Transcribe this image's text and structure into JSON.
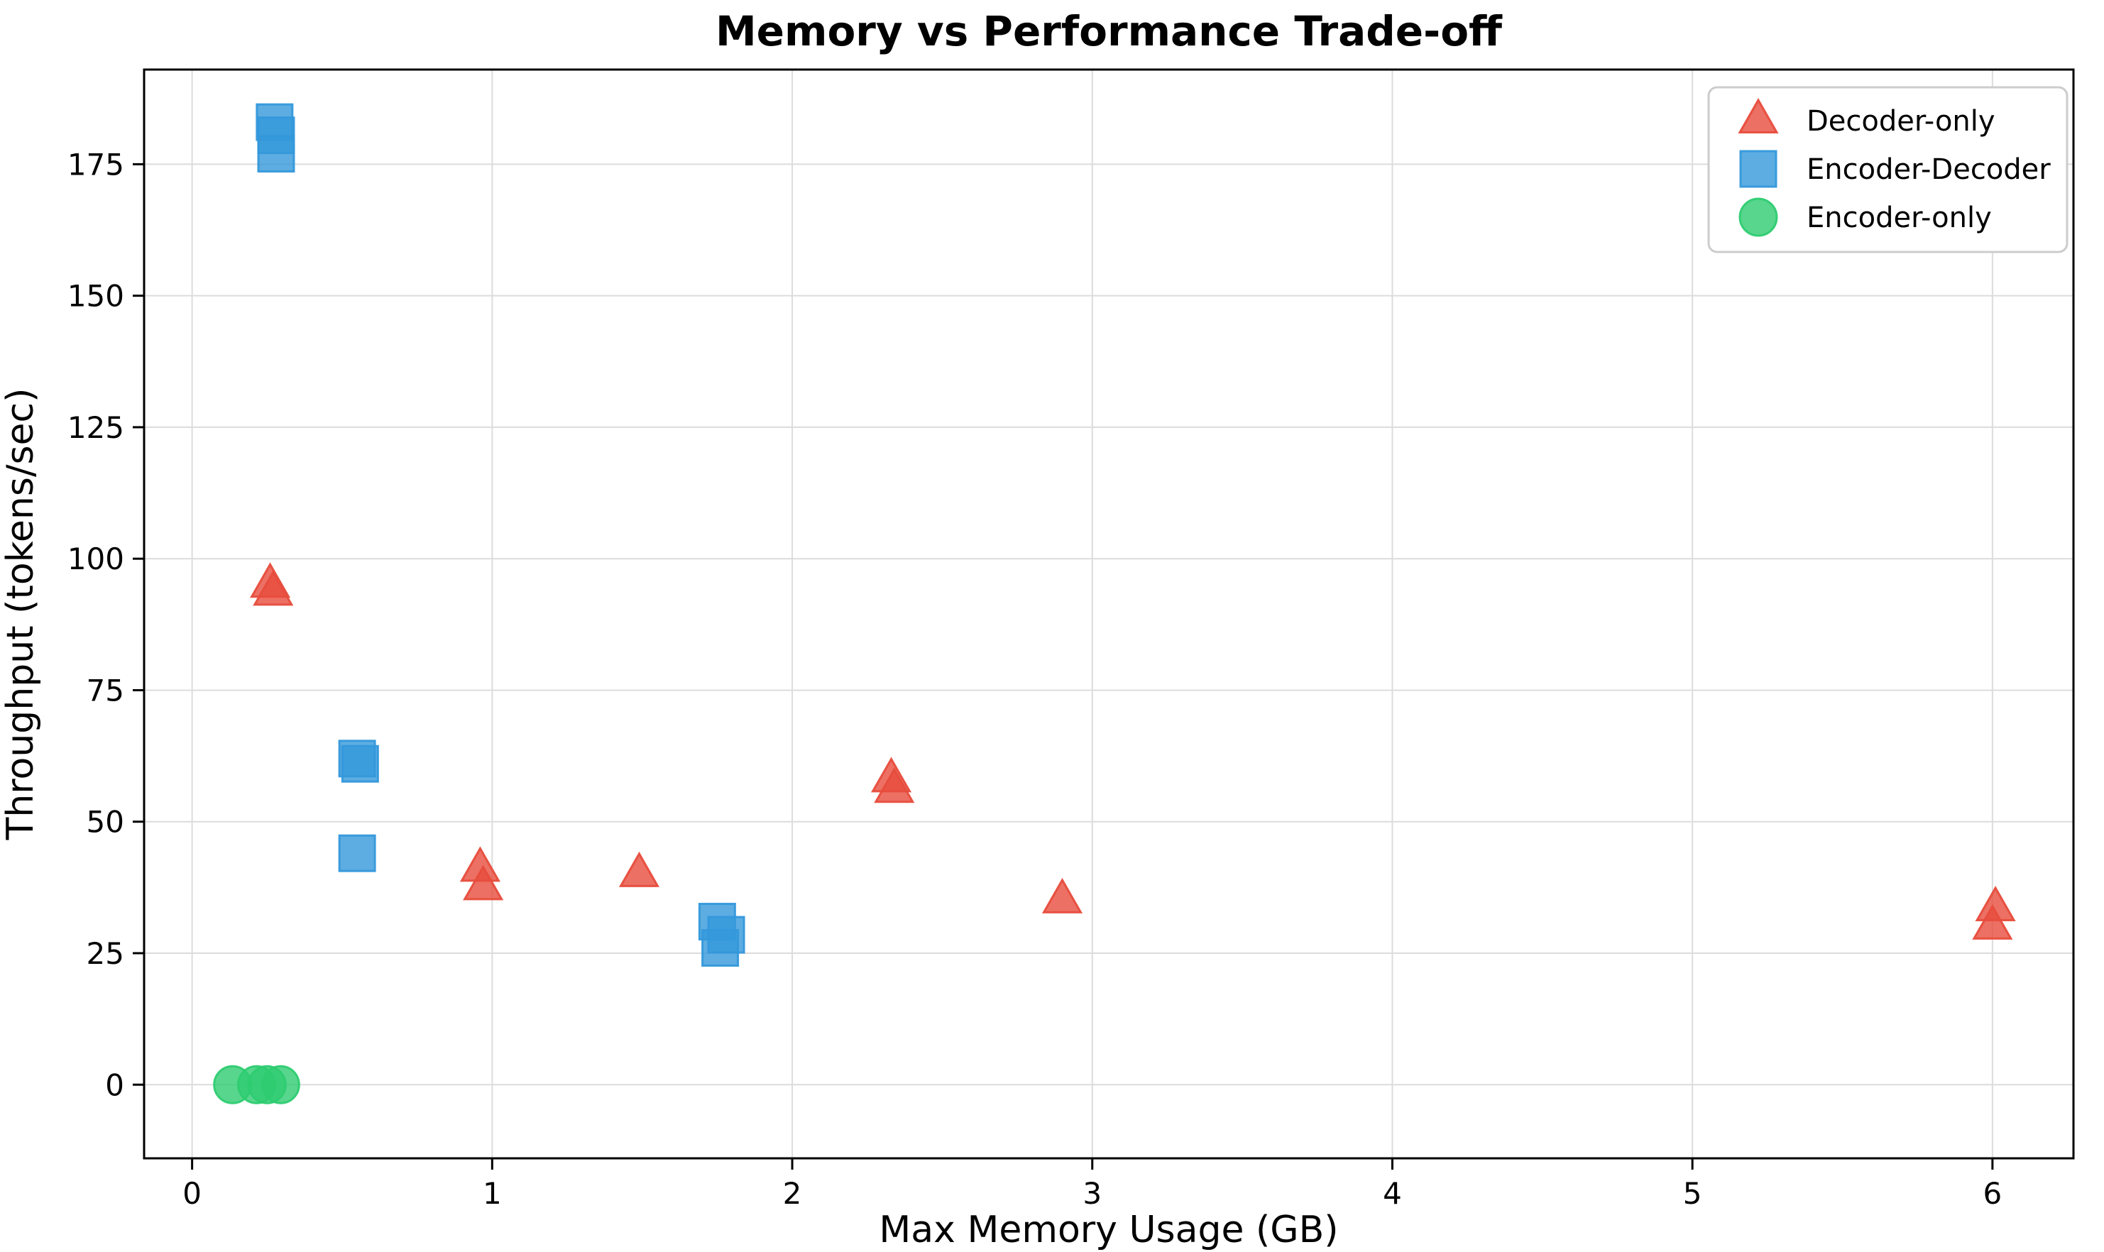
{
  "chart_data": {
    "type": "scatter",
    "title": "Memory vs Performance Trade-off",
    "xlabel": "Max Memory Usage (GB)",
    "ylabel": "Throughput (tokens/sec)",
    "xlim": [
      -0.16,
      6.27
    ],
    "ylim": [
      -14,
      193
    ],
    "x_ticks": [
      "0",
      "1",
      "2",
      "3",
      "4",
      "5",
      "6"
    ],
    "x_tick_values": [
      0,
      1,
      2,
      3,
      4,
      5,
      6
    ],
    "y_ticks": [
      "0",
      "25",
      "50",
      "75",
      "100",
      "125",
      "150",
      "175"
    ],
    "y_tick_values": [
      0,
      25,
      50,
      75,
      100,
      125,
      150,
      175
    ],
    "grid": true,
    "grid_color": "#dcdcdc",
    "spine_color": "#000000",
    "background": "#ffffff",
    "legend_position": "upper right",
    "marker_alpha": 0.8,
    "series": [
      {
        "name": "Decoder-only",
        "marker": "triangle",
        "color": "#e74c3c",
        "points": [
          [
            0.26,
            95
          ],
          [
            0.27,
            93.5
          ],
          [
            0.96,
            41
          ],
          [
            0.97,
            37.5
          ],
          [
            1.49,
            40
          ],
          [
            2.33,
            58
          ],
          [
            2.34,
            56
          ],
          [
            2.9,
            35
          ],
          [
            6.0,
            30
          ],
          [
            6.01,
            33.5
          ]
        ]
      },
      {
        "name": "Encoder-Decoder",
        "marker": "square",
        "color": "#3498db",
        "points": [
          [
            0.275,
            183
          ],
          [
            0.28,
            180.5
          ],
          [
            0.28,
            177
          ],
          [
            0.55,
            62
          ],
          [
            0.56,
            61
          ],
          [
            0.55,
            44
          ],
          [
            1.75,
            31
          ],
          [
            1.76,
            26
          ],
          [
            1.78,
            28.5
          ]
        ]
      },
      {
        "name": "Encoder-only",
        "marker": "circle",
        "color": "#2ecc71",
        "points": [
          [
            0.135,
            0
          ],
          [
            0.215,
            0
          ],
          [
            0.25,
            0
          ],
          [
            0.295,
            0
          ]
        ]
      }
    ]
  }
}
